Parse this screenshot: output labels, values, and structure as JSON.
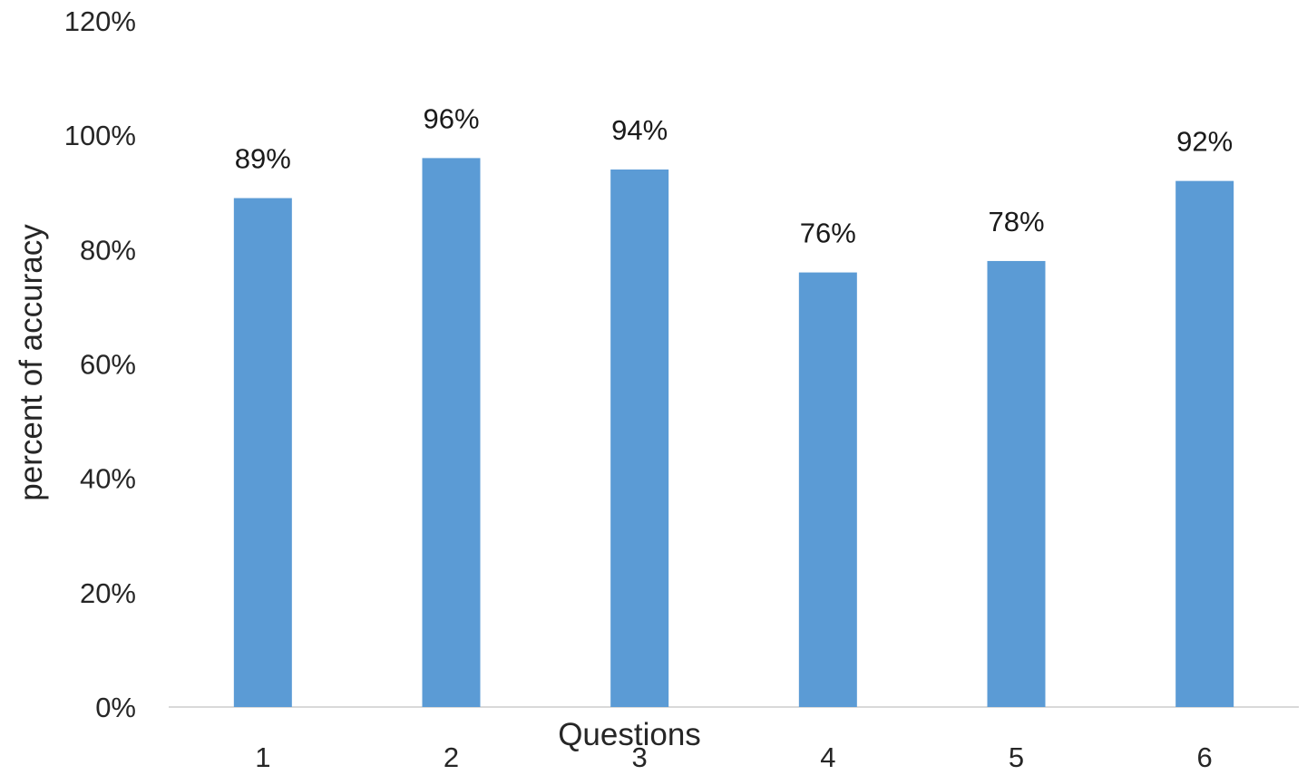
{
  "chart_data": {
    "type": "bar",
    "categories": [
      "1",
      "2",
      "3",
      "4",
      "5",
      "6"
    ],
    "values": [
      0.89,
      0.96,
      0.94,
      0.76,
      0.78,
      0.92
    ],
    "data_labels": [
      "89%",
      "96%",
      "94%",
      "76%",
      "78%",
      "92%"
    ],
    "xlabel": "Questions",
    "ylabel": "percent of accuracy",
    "ylim": [
      0,
      1.2
    ],
    "yticks": [
      0,
      0.2,
      0.4,
      0.6,
      0.8,
      1.0,
      1.2
    ],
    "ytick_labels": [
      "0%",
      "20%",
      "40%",
      "60%",
      "80%",
      "100%",
      "120%"
    ],
    "grid": false,
    "legend": "none",
    "colors": {
      "bar": "#5b9bd5",
      "axis": "#d9d9d9",
      "text": "#262626"
    }
  }
}
